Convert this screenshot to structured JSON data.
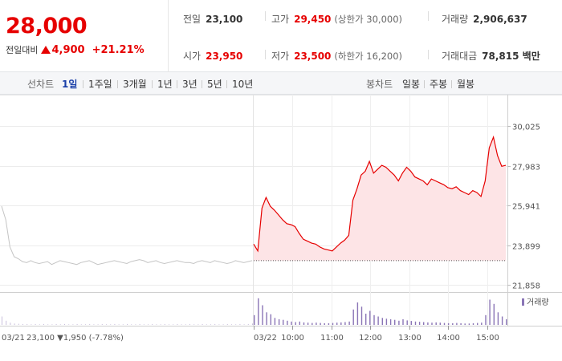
{
  "summary": {
    "price": "28,000",
    "diff_label": "전일대비",
    "diff_value": "4,900",
    "diff_rate": "+21.21%",
    "prev_close_label": "전일",
    "prev_close": "23,100",
    "open_label": "시가",
    "open": "23,950",
    "high_label": "고가",
    "high": "29,450",
    "upper_limit": "(상한가 30,000)",
    "low_label": "저가",
    "low": "23,500",
    "lower_limit": "(하한가 16,200)",
    "volume_label": "거래량",
    "volume": "2,906,637",
    "amount_label": "거래대금",
    "amount": "78,815 백만",
    "up_color": "#e60000",
    "down_color": "#1a3fa8"
  },
  "tabs": {
    "line_label": "선차트",
    "line_periods": [
      "1일",
      "1주일",
      "3개월",
      "1년",
      "3년",
      "5년",
      "10년"
    ],
    "active_period": "1일",
    "candle_label": "봉차트",
    "candle_periods": [
      "일봉",
      "주봉",
      "월봉"
    ]
  },
  "chart_data": {
    "type": "line",
    "yticks": [
      "30,025",
      "27,983",
      "25,941",
      "23,899",
      "21,858"
    ],
    "ylim": [
      21858,
      30025
    ],
    "prev_day": {
      "date_label": "03/21",
      "close": "23,100",
      "change": "1,950",
      "rate": "(-7.78%)",
      "values": [
        25900,
        25200,
        23800,
        23300,
        23200,
        23050,
        23000,
        23100,
        23000,
        22950,
        23000,
        23050,
        22900,
        23000,
        23100,
        23050,
        23000,
        22950,
        22900,
        23000,
        23050,
        23100,
        23000,
        22900,
        22950,
        23000,
        23050,
        23100,
        23050,
        23000,
        22950,
        23050,
        23100,
        23150,
        23100,
        23000,
        23050,
        23100,
        23000,
        22950,
        23000,
        23050,
        23100,
        23050,
        23000,
        23000,
        22950,
        23050,
        23100,
        23050,
        23000,
        23100,
        23050,
        23000,
        22950,
        23000,
        23100,
        23050,
        23000,
        23050,
        23100
      ]
    },
    "today": {
      "date_label": "03/22",
      "x_ticks": [
        "10:00",
        "11:00",
        "12:00",
        "13:00",
        "14:00",
        "15:00"
      ],
      "prev_close_ref": 23100,
      "values": [
        23950,
        23600,
        25800,
        26350,
        25900,
        25700,
        25450,
        25200,
        25000,
        24950,
        24850,
        24500,
        24200,
        24100,
        24000,
        23950,
        23800,
        23700,
        23650,
        23600,
        23800,
        24000,
        24150,
        24400,
        26200,
        26800,
        27500,
        27700,
        28200,
        27600,
        27800,
        28000,
        27900,
        27700,
        27500,
        27200,
        27600,
        27900,
        27700,
        27400,
        27300,
        27200,
        27000,
        27300,
        27200,
        27100,
        27000,
        26850,
        26800,
        26900,
        26700,
        26600,
        26500,
        26700,
        26600,
        26400,
        27200,
        28900,
        29450,
        28500,
        27950,
        28000
      ]
    },
    "volume": {
      "legend": "거래량",
      "color": "#8a75b6",
      "prev_day": [
        0.3,
        0.15,
        0.08,
        0.05,
        0.04,
        0.03,
        0.03,
        0.02,
        0.03,
        0.02,
        0.03,
        0.02,
        0.02,
        0.03,
        0.02,
        0.03,
        0.02,
        0.02,
        0.03,
        0.02,
        0.02,
        0.03,
        0.02,
        0.02,
        0.03,
        0.02,
        0.02,
        0.03,
        0.02,
        0.02,
        0.03,
        0.02,
        0.02,
        0.03,
        0.02,
        0.02,
        0.03,
        0.02,
        0.02,
        0.03,
        0.02,
        0.02,
        0.03,
        0.02,
        0.02,
        0.03,
        0.02,
        0.02,
        0.03,
        0.02,
        0.02,
        0.03,
        0.02,
        0.02,
        0.03,
        0.02,
        0.02,
        0.03,
        0.02,
        0.03,
        0.05
      ],
      "today": [
        0.35,
        0.95,
        0.7,
        0.45,
        0.38,
        0.25,
        0.2,
        0.18,
        0.15,
        0.12,
        0.1,
        0.12,
        0.09,
        0.08,
        0.07,
        0.08,
        0.07,
        0.06,
        0.06,
        0.07,
        0.08,
        0.09,
        0.1,
        0.12,
        0.55,
        0.8,
        0.65,
        0.4,
        0.5,
        0.35,
        0.3,
        0.25,
        0.22,
        0.2,
        0.18,
        0.15,
        0.2,
        0.16,
        0.14,
        0.12,
        0.11,
        0.1,
        0.09,
        0.08,
        0.09,
        0.08,
        0.07,
        0.06,
        0.06,
        0.07,
        0.06,
        0.05,
        0.05,
        0.06,
        0.07,
        0.08,
        0.35,
        0.9,
        0.75,
        0.45,
        0.3,
        0.2
      ]
    }
  }
}
